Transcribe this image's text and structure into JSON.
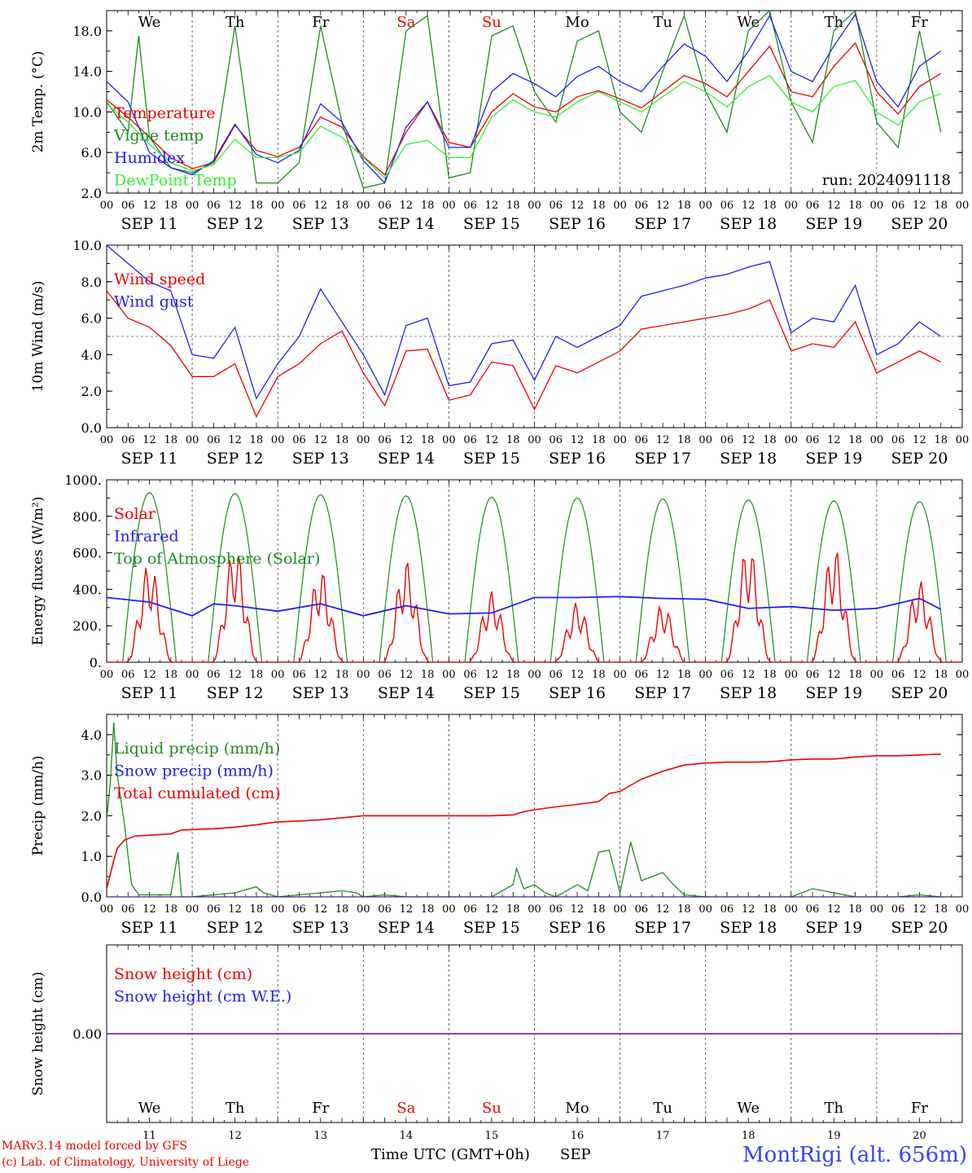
{
  "run_label": "run: 2024091118",
  "footer": {
    "credit_line1": "MARv3.14 model forced by GFS",
    "credit_line2": "(c) Lab. of Climatology, University of Liege",
    "station": "MontRigi (alt. 656m)",
    "x_title": "Time UTC (GMT+0h)",
    "month": "SEP"
  },
  "colors": {
    "red": "#ee0000",
    "green": "#1f8a1f",
    "blue": "#2020ee",
    "light_green": "#33ee33",
    "purple": "#8833aa",
    "station_blue": "#3344ff"
  },
  "axis": {
    "hour_ticks": [
      "00",
      "06",
      "12",
      "18"
    ],
    "final_tick": "00",
    "date_labels": [
      "SEP 11",
      "SEP 12",
      "SEP 13",
      "SEP 14",
      "SEP 15",
      "SEP 16",
      "SEP 17",
      "SEP 18",
      "SEP 19",
      "SEP 20"
    ],
    "day_names": [
      "We",
      "Th",
      "Fr",
      "Sa",
      "Su",
      "Mo",
      "Tu",
      "We",
      "Th",
      "Fr"
    ],
    "weekend_days": [
      3,
      4
    ],
    "day_numbers": [
      "11",
      "12",
      "13",
      "14",
      "15",
      "16",
      "17",
      "18",
      "19",
      "20"
    ]
  },
  "chart_data": [
    {
      "type": "line",
      "id": "temperature",
      "ylabel": "2m Temp. (°C)",
      "ylim": [
        2,
        20
      ],
      "yticks": [
        "2.0",
        "6.0",
        "10.0",
        "14.0",
        "18.0"
      ],
      "x_unit": "hours since SEP 11 00 UTC",
      "legend": [
        "Temperature",
        "Vigne temp",
        "Humidex",
        "DewPoint Temp"
      ],
      "series": [
        {
          "name": "Temperature",
          "color": "red",
          "x": [
            0,
            6,
            12,
            18,
            24,
            30,
            36,
            42,
            48,
            54,
            60,
            66,
            72,
            78,
            84,
            90,
            96,
            102,
            108,
            114,
            120,
            126,
            132,
            138,
            144,
            150,
            156,
            162,
            168,
            174,
            180,
            186,
            192,
            198,
            204,
            210,
            216,
            222,
            228,
            234
          ],
          "y": [
            11.2,
            9.5,
            7.5,
            5.5,
            4.4,
            5.0,
            8.7,
            6.2,
            5.6,
            6.5,
            9.5,
            8.5,
            5.6,
            3.8,
            8.0,
            11.0,
            7.0,
            6.5,
            10.0,
            11.8,
            10.5,
            10.0,
            11.5,
            12.1,
            11.3,
            10.4,
            12.0,
            13.6,
            12.8,
            11.5,
            14.0,
            16.5,
            12.0,
            11.5,
            14.5,
            16.8,
            12.0,
            9.8,
            12.5,
            13.8
          ]
        },
        {
          "name": "Vigne temp",
          "color": "green",
          "x": [
            0,
            6,
            9,
            12,
            18,
            24,
            30,
            36,
            42,
            48,
            54,
            60,
            66,
            72,
            78,
            84,
            90,
            96,
            102,
            108,
            114,
            120,
            126,
            132,
            138,
            144,
            150,
            156,
            162,
            168,
            174,
            180,
            186,
            192,
            198,
            204,
            210,
            216,
            222,
            228,
            234
          ],
          "y": [
            11.0,
            8.0,
            17.5,
            7.5,
            4.5,
            4.0,
            5.0,
            18.5,
            3.0,
            3.0,
            5.0,
            18.5,
            9.0,
            2.5,
            3.0,
            18.0,
            19.5,
            3.5,
            4.0,
            17.5,
            18.5,
            12.0,
            9.0,
            17.0,
            18.0,
            10.0,
            8.0,
            14.0,
            19.5,
            12.0,
            8.0,
            18.0,
            20.0,
            11.0,
            7.0,
            18.0,
            20.0,
            9.0,
            6.5,
            18.0,
            8.0
          ]
        },
        {
          "name": "Humidex",
          "color": "blue",
          "x": [
            0,
            6,
            12,
            18,
            24,
            30,
            36,
            42,
            48,
            54,
            60,
            66,
            72,
            78,
            84,
            90,
            96,
            102,
            108,
            114,
            120,
            126,
            132,
            138,
            144,
            150,
            156,
            162,
            168,
            174,
            180,
            186,
            192,
            198,
            204,
            210,
            216,
            222,
            228,
            234
          ],
          "y": [
            13.0,
            11.0,
            6.0,
            4.5,
            3.8,
            5.2,
            8.8,
            5.8,
            5.0,
            6.2,
            10.8,
            9.0,
            5.2,
            3.0,
            8.5,
            11.0,
            6.5,
            6.5,
            12.0,
            13.8,
            12.8,
            11.5,
            13.5,
            14.5,
            13.0,
            12.0,
            14.5,
            16.7,
            15.5,
            13.0,
            16.0,
            19.5,
            14.0,
            13.0,
            16.5,
            19.6,
            13.0,
            10.5,
            14.5,
            16.0
          ]
        },
        {
          "name": "DewPoint Temp",
          "color": "light_green",
          "x": [
            0,
            6,
            12,
            18,
            24,
            30,
            36,
            42,
            48,
            54,
            60,
            66,
            72,
            78,
            84,
            90,
            96,
            102,
            108,
            114,
            120,
            126,
            132,
            138,
            144,
            150,
            156,
            162,
            168,
            174,
            180,
            186,
            192,
            198,
            204,
            210,
            216,
            222,
            228,
            234
          ],
          "y": [
            10.8,
            9.0,
            6.8,
            5.0,
            4.2,
            4.8,
            7.3,
            5.5,
            5.5,
            6.0,
            8.6,
            7.5,
            5.5,
            3.5,
            6.8,
            7.2,
            5.5,
            5.5,
            9.5,
            11.2,
            10.0,
            9.5,
            11.0,
            12.0,
            11.0,
            10.0,
            11.5,
            13.0,
            12.0,
            10.5,
            12.5,
            13.6,
            11.0,
            10.0,
            12.5,
            13.1,
            10.0,
            8.7,
            11.0,
            11.8
          ]
        }
      ]
    },
    {
      "type": "line",
      "id": "wind",
      "ylabel": "10m Wind (m/s)",
      "ylim": [
        0,
        10
      ],
      "yticks": [
        "0.0",
        "2.0",
        "4.0",
        "6.0",
        "8.0",
        "10.0"
      ],
      "reference_line": 5,
      "legend": [
        "Wind speed",
        "Wind gust"
      ],
      "series": [
        {
          "name": "Wind speed",
          "color": "red",
          "x": [
            0,
            6,
            12,
            18,
            24,
            30,
            36,
            42,
            48,
            54,
            60,
            66,
            72,
            78,
            84,
            90,
            96,
            102,
            108,
            114,
            120,
            126,
            132,
            138,
            144,
            150,
            156,
            162,
            168,
            174,
            180,
            186,
            192,
            198,
            204,
            210,
            216,
            222,
            228,
            234
          ],
          "y": [
            7.5,
            6.0,
            5.5,
            4.5,
            2.8,
            2.8,
            3.5,
            0.6,
            2.8,
            3.5,
            4.6,
            5.3,
            3.0,
            1.2,
            4.2,
            4.3,
            1.5,
            1.8,
            3.6,
            3.4,
            1.0,
            3.4,
            3.0,
            3.6,
            4.2,
            5.4,
            5.6,
            5.8,
            6.0,
            6.2,
            6.5,
            7.0,
            4.2,
            4.6,
            4.4,
            5.8,
            3.0,
            3.6,
            4.2,
            3.6
          ]
        },
        {
          "name": "Wind gust",
          "color": "blue",
          "x": [
            0,
            6,
            12,
            18,
            24,
            30,
            36,
            42,
            48,
            54,
            60,
            66,
            72,
            78,
            84,
            90,
            96,
            102,
            108,
            114,
            120,
            126,
            132,
            138,
            144,
            150,
            156,
            162,
            168,
            174,
            180,
            186,
            192,
            198,
            204,
            210,
            216,
            222,
            228,
            234
          ],
          "y": [
            10.0,
            9.0,
            8.0,
            7.5,
            4.0,
            3.8,
            5.5,
            1.6,
            3.5,
            5.0,
            7.6,
            5.8,
            4.0,
            1.8,
            5.6,
            6.0,
            2.3,
            2.5,
            4.6,
            4.8,
            2.6,
            5.0,
            4.4,
            5.0,
            5.6,
            7.2,
            7.5,
            7.8,
            8.2,
            8.4,
            8.8,
            9.1,
            5.2,
            6.0,
            5.8,
            7.8,
            4.0,
            4.6,
            5.8,
            5.0
          ]
        }
      ]
    },
    {
      "type": "line",
      "id": "energy",
      "ylabel": "Energy fluxes (W/m²)",
      "ylim": [
        0,
        1000
      ],
      "yticks": [
        "0.",
        "200.",
        "400.",
        "600.",
        "800.",
        "1000."
      ],
      "legend": [
        "Solar",
        "Infrared",
        "Top of Atmosphere (Solar)"
      ],
      "toa_peaks": [
        930,
        925,
        918,
        912,
        905,
        900,
        895,
        890,
        885,
        880
      ],
      "solar_peaks": [
        550,
        640,
        510,
        560,
        390,
        330,
        320,
        650,
        640,
        450
      ],
      "infrared": {
        "x": [
          0,
          12,
          24,
          30,
          36,
          48,
          60,
          72,
          84,
          96,
          108,
          120,
          132,
          144,
          156,
          168,
          180,
          192,
          204,
          216,
          228,
          234
        ],
        "y": [
          355,
          330,
          255,
          320,
          310,
          280,
          320,
          255,
          310,
          265,
          270,
          355,
          355,
          360,
          350,
          345,
          295,
          305,
          285,
          295,
          350,
          290
        ]
      },
      "series": [
        {
          "name": "Solar",
          "color": "red"
        },
        {
          "name": "Infrared",
          "color": "blue"
        },
        {
          "name": "Top of Atmosphere (Solar)",
          "color": "green"
        }
      ]
    },
    {
      "type": "line",
      "id": "precip",
      "ylabel": "Precip (mm/h)",
      "ylim": [
        0,
        4.5
      ],
      "yticks": [
        "0.0",
        "1.0",
        "2.0",
        "3.0",
        "4.0"
      ],
      "legend": [
        "Liquid precip (mm/h)",
        "Snow precip (mm/h)",
        "Total cumulated (cm)"
      ],
      "series": [
        {
          "name": "Liquid precip (mm/h)",
          "color": "green",
          "x": [
            0,
            1,
            2,
            3,
            5,
            6,
            7,
            9,
            12,
            18,
            20,
            21,
            22,
            24,
            30,
            36,
            40,
            42,
            44,
            48,
            54,
            60,
            66,
            70,
            72,
            78,
            84,
            96,
            108,
            114,
            115,
            117,
            120,
            123,
            126,
            132,
            135,
            138,
            141,
            144,
            147,
            150,
            153,
            156,
            159,
            162,
            168,
            180,
            186,
            192,
            198,
            204,
            210,
            216,
            222,
            228,
            234
          ],
          "y": [
            1.9,
            2.8,
            4.3,
            3.0,
            1.8,
            1.0,
            0.3,
            0.05,
            0.05,
            0.05,
            1.1,
            0.0,
            0.0,
            0.0,
            0.05,
            0.1,
            0.2,
            0.25,
            0.1,
            0.0,
            0.05,
            0.1,
            0.15,
            0.1,
            0.0,
            0.05,
            0.0,
            0.0,
            0.0,
            0.3,
            0.7,
            0.2,
            0.3,
            0.1,
            0.0,
            0.3,
            0.15,
            1.1,
            1.15,
            0.1,
            1.35,
            0.4,
            0.5,
            0.6,
            0.3,
            0.05,
            0.0,
            0.0,
            0.0,
            0.0,
            0.2,
            0.1,
            0.0,
            0.0,
            0.0,
            0.05,
            0.0
          ]
        },
        {
          "name": "Snow precip (mm/h)",
          "color": "blue",
          "x": [
            0,
            234
          ],
          "y": [
            0,
            0
          ]
        },
        {
          "name": "Total cumulated (cm)",
          "color": "red",
          "x": [
            0,
            2,
            3,
            5,
            8,
            12,
            18,
            21,
            24,
            30,
            36,
            42,
            48,
            54,
            60,
            66,
            72,
            78,
            84,
            96,
            108,
            114,
            117,
            120,
            126,
            132,
            138,
            141,
            144,
            147,
            150,
            156,
            162,
            168,
            174,
            180,
            186,
            192,
            198,
            204,
            210,
            216,
            222,
            228,
            234
          ],
          "y": [
            0.2,
            0.9,
            1.2,
            1.4,
            1.5,
            1.52,
            1.55,
            1.65,
            1.66,
            1.68,
            1.72,
            1.78,
            1.85,
            1.87,
            1.9,
            1.95,
            2.0,
            2.0,
            2.0,
            2.0,
            2.0,
            2.02,
            2.1,
            2.15,
            2.22,
            2.28,
            2.35,
            2.55,
            2.6,
            2.75,
            2.9,
            3.1,
            3.25,
            3.3,
            3.32,
            3.32,
            3.33,
            3.38,
            3.4,
            3.4,
            3.45,
            3.48,
            3.48,
            3.5,
            3.52
          ]
        }
      ]
    },
    {
      "type": "line",
      "id": "snow",
      "ylabel": "Snow height (cm)",
      "ylim": [
        -1,
        1
      ],
      "yticks": [
        "0.00"
      ],
      "legend": [
        "Snow height (cm)",
        "Snow height (cm W.E.)"
      ],
      "series": [
        {
          "name": "Snow height (cm)",
          "color": "red",
          "x": [
            0,
            234
          ],
          "y": [
            0,
            0
          ]
        },
        {
          "name": "Snow height (cm W.E.)",
          "color": "blue",
          "x": [
            0,
            234
          ],
          "y": [
            0,
            0
          ]
        }
      ]
    }
  ]
}
